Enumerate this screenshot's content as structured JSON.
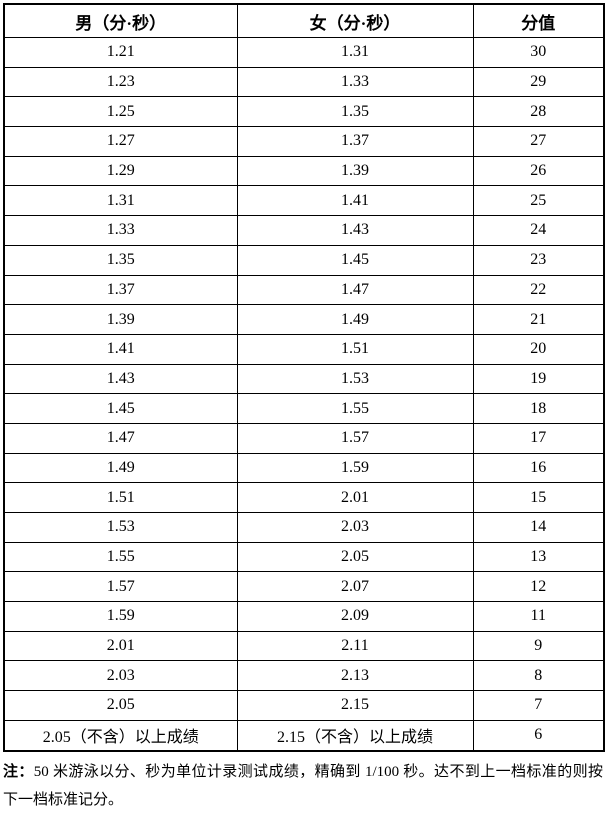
{
  "table": {
    "headers": [
      "男（分·秒）",
      "女（分·秒）",
      "分值"
    ],
    "rows": [
      [
        "1.21",
        "1.31",
        "30"
      ],
      [
        "1.23",
        "1.33",
        "29"
      ],
      [
        "1.25",
        "1.35",
        "28"
      ],
      [
        "1.27",
        "1.37",
        "27"
      ],
      [
        "1.29",
        "1.39",
        "26"
      ],
      [
        "1.31",
        "1.41",
        "25"
      ],
      [
        "1.33",
        "1.43",
        "24"
      ],
      [
        "1.35",
        "1.45",
        "23"
      ],
      [
        "1.37",
        "1.47",
        "22"
      ],
      [
        "1.39",
        "1.49",
        "21"
      ],
      [
        "1.41",
        "1.51",
        "20"
      ],
      [
        "1.43",
        "1.53",
        "19"
      ],
      [
        "1.45",
        "1.55",
        "18"
      ],
      [
        "1.47",
        "1.57",
        "17"
      ],
      [
        "1.49",
        "1.59",
        "16"
      ],
      [
        "1.51",
        "2.01",
        "15"
      ],
      [
        "1.53",
        "2.03",
        "14"
      ],
      [
        "1.55",
        "2.05",
        "13"
      ],
      [
        "1.57",
        "2.07",
        "12"
      ],
      [
        "1.59",
        "2.09",
        "11"
      ],
      [
        "2.01",
        "2.11",
        "9"
      ],
      [
        "2.03",
        "2.13",
        "8"
      ],
      [
        "2.05",
        "2.15",
        "7"
      ],
      [
        "2.05（不含）以上成绩",
        "2.15（不含）以上成绩",
        "6"
      ]
    ]
  },
  "note": {
    "label": "注：",
    "text": "50 米游泳以分、秒为单位计录测试成绩，精确到 1/100 秒。达不到上一档标准的则按下一档标准记分。"
  },
  "colors": {
    "border": "#000000",
    "text": "#000000",
    "background": "#ffffff"
  }
}
